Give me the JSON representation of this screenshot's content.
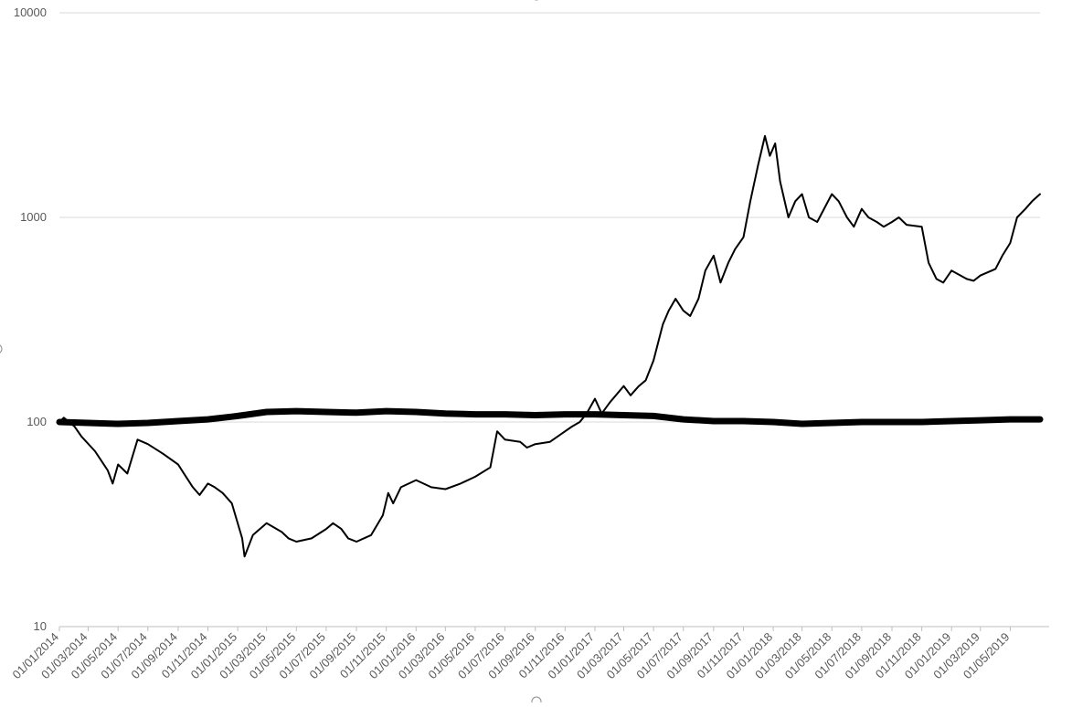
{
  "chart_data": {
    "type": "line",
    "title": "",
    "xlabel": "",
    "ylabel": "",
    "y_scale": "log",
    "ylim": [
      10,
      10000
    ],
    "y_ticks": [
      "10",
      "100",
      "1000",
      "10000"
    ],
    "xlim": [
      "01/01/2014",
      "01/07/2019"
    ],
    "x_ticks": [
      "01/01/2014",
      "01/03/2014",
      "01/05/2014",
      "01/07/2014",
      "01/09/2014",
      "01/11/2014",
      "01/01/2015",
      "01/03/2015",
      "01/05/2015",
      "01/07/2015",
      "01/09/2015",
      "01/11/2015",
      "01/01/2016",
      "01/03/2016",
      "01/05/2016",
      "01/07/2016",
      "01/09/2016",
      "01/11/2016",
      "01/01/2017",
      "01/03/2017",
      "01/05/2017",
      "01/07/2017",
      "01/09/2017",
      "01/11/2017",
      "01/01/2018",
      "01/03/2018",
      "01/05/2018",
      "01/07/2018",
      "01/09/2018",
      "01/11/2018",
      "01/01/2019",
      "01/03/2019",
      "01/05/2019"
    ],
    "grid": "horizontal",
    "legend": "none",
    "series": [
      {
        "color": "#000000",
        "line": "thin",
        "points": [
          [
            "01/01/2014",
            100
          ],
          [
            "10/01/2014",
            105
          ],
          [
            "01/02/2014",
            95
          ],
          [
            "15/02/2014",
            85
          ],
          [
            "15/03/2014",
            72
          ],
          [
            "10/04/2014",
            58
          ],
          [
            "20/04/2014",
            50
          ],
          [
            "01/05/2014",
            62
          ],
          [
            "20/05/2014",
            56
          ],
          [
            "10/06/2014",
            82
          ],
          [
            "01/07/2014",
            78
          ],
          [
            "01/08/2014",
            70
          ],
          [
            "01/09/2014",
            62
          ],
          [
            "15/09/2014",
            55
          ],
          [
            "01/10/2014",
            48
          ],
          [
            "15/10/2014",
            44
          ],
          [
            "01/11/2014",
            50
          ],
          [
            "15/11/2014",
            48
          ],
          [
            "01/12/2014",
            45
          ],
          [
            "20/12/2014",
            40
          ],
          [
            "10/01/2015",
            27
          ],
          [
            "15/01/2015",
            22
          ],
          [
            "01/02/2015",
            28
          ],
          [
            "01/03/2015",
            32
          ],
          [
            "01/04/2015",
            29
          ],
          [
            "15/04/2015",
            27
          ],
          [
            "01/05/2015",
            26
          ],
          [
            "01/06/2015",
            27
          ],
          [
            "01/07/2015",
            30
          ],
          [
            "15/07/2015",
            32
          ],
          [
            "01/08/2015",
            30
          ],
          [
            "15/08/2015",
            27
          ],
          [
            "01/09/2015",
            26
          ],
          [
            "01/10/2015",
            28
          ],
          [
            "25/10/2015",
            35
          ],
          [
            "05/11/2015",
            45
          ],
          [
            "15/11/2015",
            40
          ],
          [
            "01/12/2015",
            48
          ],
          [
            "01/01/2016",
            52
          ],
          [
            "01/02/2016",
            48
          ],
          [
            "01/03/2016",
            47
          ],
          [
            "01/04/2016",
            50
          ],
          [
            "01/05/2016",
            54
          ],
          [
            "01/06/2016",
            60
          ],
          [
            "15/06/2016",
            90
          ],
          [
            "01/07/2016",
            82
          ],
          [
            "01/08/2016",
            80
          ],
          [
            "15/08/2016",
            75
          ],
          [
            "01/09/2016",
            78
          ],
          [
            "01/10/2016",
            80
          ],
          [
            "01/11/2016",
            90
          ],
          [
            "15/11/2016",
            95
          ],
          [
            "01/12/2016",
            100
          ],
          [
            "15/12/2016",
            110
          ],
          [
            "01/01/2017",
            130
          ],
          [
            "15/01/2017",
            110
          ],
          [
            "01/02/2017",
            125
          ],
          [
            "01/03/2017",
            150
          ],
          [
            "15/03/2017",
            135
          ],
          [
            "01/04/2017",
            150
          ],
          [
            "15/04/2017",
            160
          ],
          [
            "01/05/2017",
            200
          ],
          [
            "20/05/2017",
            300
          ],
          [
            "01/06/2017",
            350
          ],
          [
            "15/06/2017",
            400
          ],
          [
            "01/07/2017",
            350
          ],
          [
            "15/07/2017",
            330
          ],
          [
            "01/08/2017",
            400
          ],
          [
            "15/08/2017",
            550
          ],
          [
            "01/09/2017",
            650
          ],
          [
            "15/09/2017",
            480
          ],
          [
            "01/10/2017",
            600
          ],
          [
            "15/10/2017",
            700
          ],
          [
            "01/11/2017",
            800
          ],
          [
            "15/11/2017",
            1200
          ],
          [
            "01/12/2017",
            1800
          ],
          [
            "15/12/2017",
            2500
          ],
          [
            "25/12/2017",
            2000
          ],
          [
            "05/01/2018",
            2300
          ],
          [
            "15/01/2018",
            1500
          ],
          [
            "01/02/2018",
            1000
          ],
          [
            "15/02/2018",
            1200
          ],
          [
            "01/03/2018",
            1300
          ],
          [
            "15/03/2018",
            1000
          ],
          [
            "01/04/2018",
            950
          ],
          [
            "01/05/2018",
            1300
          ],
          [
            "15/05/2018",
            1200
          ],
          [
            "01/06/2018",
            1000
          ],
          [
            "15/06/2018",
            900
          ],
          [
            "01/07/2018",
            1100
          ],
          [
            "15/07/2018",
            1000
          ],
          [
            "01/08/2018",
            950
          ],
          [
            "15/08/2018",
            900
          ],
          [
            "01/09/2018",
            950
          ],
          [
            "15/09/2018",
            1000
          ],
          [
            "01/10/2018",
            920
          ],
          [
            "01/11/2018",
            900
          ],
          [
            "15/11/2018",
            600
          ],
          [
            "01/12/2018",
            500
          ],
          [
            "15/12/2018",
            480
          ],
          [
            "01/01/2019",
            550
          ],
          [
            "01/02/2019",
            500
          ],
          [
            "15/02/2019",
            490
          ],
          [
            "01/03/2019",
            520
          ],
          [
            "01/04/2019",
            560
          ],
          [
            "15/04/2019",
            650
          ],
          [
            "01/05/2019",
            750
          ],
          [
            "15/05/2019",
            1000
          ],
          [
            "01/06/2019",
            1100
          ],
          [
            "15/06/2019",
            1200
          ],
          [
            "01/07/2019",
            1300
          ]
        ]
      },
      {
        "color": "#000000",
        "line": "thick",
        "points": [
          [
            "01/01/2014",
            100
          ],
          [
            "01/03/2014",
            99
          ],
          [
            "01/05/2014",
            98
          ],
          [
            "01/07/2014",
            99
          ],
          [
            "01/09/2014",
            101
          ],
          [
            "01/11/2014",
            103
          ],
          [
            "01/01/2015",
            107
          ],
          [
            "01/03/2015",
            112
          ],
          [
            "01/05/2015",
            113
          ],
          [
            "01/07/2015",
            112
          ],
          [
            "01/09/2015",
            111
          ],
          [
            "01/11/2015",
            113
          ],
          [
            "01/01/2016",
            112
          ],
          [
            "01/03/2016",
            110
          ],
          [
            "01/05/2016",
            109
          ],
          [
            "01/07/2016",
            109
          ],
          [
            "01/09/2016",
            108
          ],
          [
            "01/11/2016",
            109
          ],
          [
            "01/01/2017",
            109
          ],
          [
            "01/03/2017",
            108
          ],
          [
            "01/05/2017",
            107
          ],
          [
            "01/07/2017",
            103
          ],
          [
            "01/09/2017",
            101
          ],
          [
            "01/11/2017",
            101
          ],
          [
            "01/01/2018",
            100
          ],
          [
            "01/03/2018",
            98
          ],
          [
            "01/05/2018",
            99
          ],
          [
            "01/07/2018",
            100
          ],
          [
            "01/09/2018",
            100
          ],
          [
            "01/11/2018",
            100
          ],
          [
            "01/01/2019",
            101
          ],
          [
            "01/03/2019",
            102
          ],
          [
            "01/05/2019",
            103
          ],
          [
            "01/07/2019",
            103
          ]
        ]
      }
    ]
  }
}
